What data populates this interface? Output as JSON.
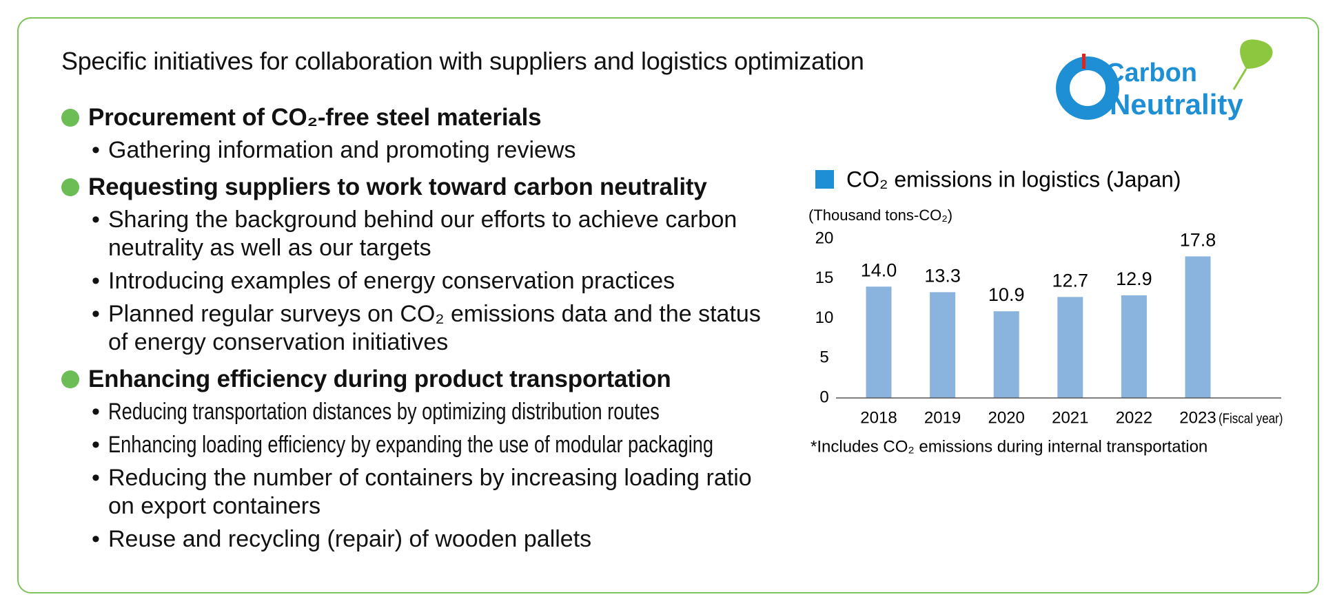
{
  "title": "Specific initiatives for collaboration with suppliers and logistics optimization",
  "sections": [
    {
      "heading": "Procurement of CO₂-free steel materials",
      "items": [
        "Gathering information and promoting reviews"
      ]
    },
    {
      "heading": "Requesting suppliers to work toward carbon neutrality",
      "items": [
        "Sharing the background behind our efforts to achieve carbon neutrality as well as our targets",
        "Introducing examples of energy conservation practices",
        "Planned regular surveys on CO₂ emissions data and the status of energy conservation initiatives"
      ]
    },
    {
      "heading": "Enhancing efficiency during product transportation",
      "items": [
        "Reducing transportation distances by optimizing distribution routes",
        "Enhancing loading efficiency by expanding the use of modular packaging",
        "Reducing the number of containers by increasing loading ratio on export containers",
        "Reuse and recycling (repair) of wooden pallets"
      ]
    }
  ],
  "logo": {
    "line1": "Carbon",
    "line2": "Neutrality"
  },
  "chart_data": {
    "type": "bar",
    "title": "CO₂ emissions in logistics (Japan)",
    "y_label": "(Thousand tons-CO₂)",
    "x_label": "(Fiscal year)",
    "categories": [
      "2018",
      "2019",
      "2020",
      "2021",
      "2022",
      "2023"
    ],
    "values": [
      14.0,
      13.3,
      10.9,
      12.7,
      12.9,
      17.8
    ],
    "value_labels": [
      "14.0",
      "13.3",
      "10.9",
      "12.7",
      "12.9",
      "17.8"
    ],
    "color": "#8ab4de",
    "legend_color": "#1e8fd5",
    "ylim": [
      0,
      20
    ],
    "yticks": [
      0,
      5,
      10,
      15,
      20
    ],
    "grid": false,
    "note": "*Includes CO₂ emissions during internal transportation"
  }
}
